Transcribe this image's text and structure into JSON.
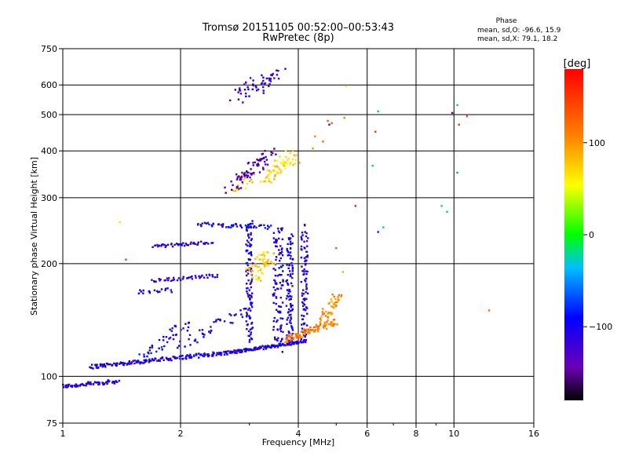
{
  "chart_data": {
    "type": "scatter",
    "title": "Tromsø 20151105 00:52:00–00:53:43",
    "subtitle": "RwPretec (8p)",
    "xlabel": "Frequency [MHz]",
    "ylabel": "Stationary phase Virtual Height [km]",
    "x_scale": "log",
    "y_scale": "log",
    "xlim": [
      1,
      16
    ],
    "ylim": [
      75,
      750
    ],
    "x_ticks": [
      1,
      2,
      4,
      6,
      8,
      10,
      16
    ],
    "x_tick_labels": [
      "1",
      "2",
      "4",
      "6",
      "8",
      "10",
      "16"
    ],
    "x_minor_ticks": [
      3,
      5,
      7,
      9
    ],
    "y_ticks": [
      75,
      100,
      200,
      300,
      400,
      500,
      600,
      750
    ],
    "y_tick_labels": [
      "75",
      "100",
      "200",
      "300",
      "400",
      "500",
      "600",
      "750"
    ],
    "grid": true,
    "phase_stats": {
      "title": "Phase",
      "o_line": "mean, sd,O: -96.6, 15.9",
      "x_line": "mean, sd,X:  79.1, 18.2"
    },
    "colorbar": {
      "label": "[deg]",
      "range": [
        -180,
        180
      ],
      "ticks": [
        -100,
        0,
        100
      ],
      "tick_labels": [
        "−100",
        "0",
        "100"
      ]
    },
    "trace_segments": [
      {
        "f": [
          1.0,
          1.38
        ],
        "h": [
          94,
          97
        ],
        "phase": -110,
        "n": 70,
        "jitter": 0.012
      },
      {
        "f": [
          1.17,
          2.7
        ],
        "h": [
          106,
          116
        ],
        "phase": -105,
        "n": 170,
        "jitter": 0.012
      },
      {
        "f": [
          2.7,
          4.2
        ],
        "h": [
          116,
          124
        ],
        "phase": -100,
        "n": 140,
        "jitter": 0.01
      },
      {
        "f": [
          1.55,
          2.1
        ],
        "h": [
          110,
          140
        ],
        "phase": -95,
        "n": 45,
        "jitter": 0.03
      },
      {
        "f": [
          2.0,
          2.9
        ],
        "h": [
          120,
          150
        ],
        "phase": -100,
        "n": 40,
        "jitter": 0.03
      },
      {
        "f": [
          1.7,
          2.4
        ],
        "h": [
          222,
          228
        ],
        "phase": -110,
        "n": 45,
        "jitter": 0.01
      },
      {
        "f": [
          1.7,
          2.5
        ],
        "h": [
          180,
          186
        ],
        "phase": -110,
        "n": 45,
        "jitter": 0.01
      },
      {
        "f": [
          2.2,
          3.4
        ],
        "h": [
          255,
          250
        ],
        "phase": -95,
        "n": 50,
        "jitter": 0.012
      },
      {
        "f": [
          1.55,
          1.9
        ],
        "h": [
          168,
          170
        ],
        "phase": -100,
        "n": 18,
        "jitter": 0.015
      },
      {
        "f": [
          3.0,
          3.0
        ],
        "h": [
          125,
          260
        ],
        "phase": -100,
        "n": 110,
        "jitter": 0.02
      },
      {
        "f": [
          3.55,
          3.55
        ],
        "h": [
          118,
          250
        ],
        "phase": -105,
        "n": 110,
        "jitter": 0.03
      },
      {
        "f": [
          3.8,
          3.8
        ],
        "h": [
          122,
          240
        ],
        "phase": -100,
        "n": 100,
        "jitter": 0.02
      },
      {
        "f": [
          4.15,
          4.15
        ],
        "h": [
          125,
          250
        ],
        "phase": -105,
        "n": 90,
        "jitter": 0.02
      },
      {
        "f": [
          3.7,
          5.0
        ],
        "h": [
          125,
          140
        ],
        "phase": 110,
        "n": 90,
        "jitter": 0.02
      },
      {
        "f": [
          4.6,
          5.05
        ],
        "h": [
          140,
          165
        ],
        "phase": 100,
        "n": 50,
        "jitter": 0.03
      },
      {
        "f": [
          3.05,
          3.35
        ],
        "h": [
          185,
          210
        ],
        "phase": 75,
        "n": 55,
        "jitter": 0.05
      },
      {
        "f": [
          3.3,
          3.9
        ],
        "h": [
          340,
          390
        ],
        "phase": 70,
        "n": 60,
        "jitter": 0.04
      },
      {
        "f": [
          2.8,
          3.0
        ],
        "h": [
          320,
          340
        ],
        "phase": 80,
        "n": 20,
        "jitter": 0.03
      },
      {
        "f": [
          2.7,
          3.4
        ],
        "h": [
          320,
          400
        ],
        "phase": -140,
        "n": 75,
        "jitter": 0.04
      },
      {
        "f": [
          2.8,
          3.6
        ],
        "h": [
          560,
          640
        ],
        "phase": -115,
        "n": 55,
        "jitter": 0.05
      },
      {
        "f": [
          4.1,
          5.2
        ],
        "h": [
          390,
          500
        ],
        "phase": 120,
        "n": 7,
        "jitter": 0.05
      }
    ],
    "scatter_points": [
      {
        "f": 6.4,
        "h": 510,
        "phase": -40
      },
      {
        "f": 6.3,
        "h": 450,
        "phase": 150
      },
      {
        "f": 6.2,
        "h": 365,
        "phase": -30
      },
      {
        "f": 6.4,
        "h": 243,
        "phase": -130
      },
      {
        "f": 6.6,
        "h": 250,
        "phase": -40
      },
      {
        "f": 9.3,
        "h": 285,
        "phase": -30
      },
      {
        "f": 9.6,
        "h": 275,
        "phase": -20
      },
      {
        "f": 9.9,
        "h": 505,
        "phase": -150
      },
      {
        "f": 10.2,
        "h": 530,
        "phase": -40
      },
      {
        "f": 10.3,
        "h": 470,
        "phase": 150
      },
      {
        "f": 10.2,
        "h": 350,
        "phase": -50
      },
      {
        "f": 10.8,
        "h": 495,
        "phase": 140
      },
      {
        "f": 12.3,
        "h": 150,
        "phase": 120
      },
      {
        "f": 5.6,
        "h": 285,
        "phase": 160
      },
      {
        "f": 5.3,
        "h": 595,
        "phase": 60
      },
      {
        "f": 4.8,
        "h": 470,
        "phase": -130
      },
      {
        "f": 1.45,
        "h": 205,
        "phase": 150
      },
      {
        "f": 1.4,
        "h": 258,
        "phase": 40
      },
      {
        "f": 5.0,
        "h": 220,
        "phase": 130
      },
      {
        "f": 5.2,
        "h": 190,
        "phase": 90
      }
    ]
  }
}
